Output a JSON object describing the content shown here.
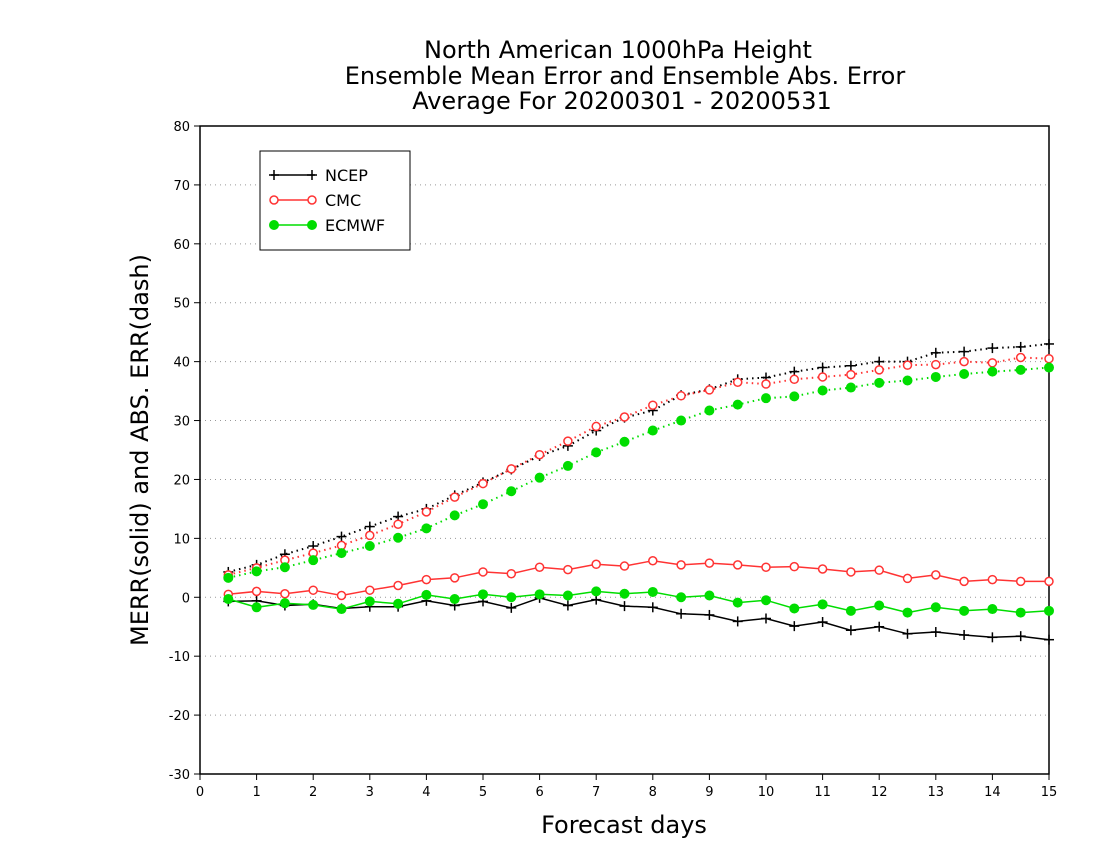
{
  "chart_data": {
    "type": "line",
    "title_lines": [
      "North American 1000hPa Height",
      "Ensemble Mean Error and Ensemble Abs. Error",
      "Average For 20200301 - 20200531"
    ],
    "xlabel": "Forecast days",
    "ylabel": "MERR(solid) and ABS. ERR(dash)",
    "xlim": [
      0,
      15
    ],
    "ylim": [
      -30,
      80
    ],
    "x_ticks": [
      "0",
      "1",
      "2",
      "3",
      "4",
      "5",
      "6",
      "7",
      "8",
      "9",
      "10",
      "11",
      "12",
      "13",
      "14",
      "15"
    ],
    "y_ticks": [
      "-30",
      "-20",
      "-10",
      "0",
      "10",
      "20",
      "30",
      "40",
      "50",
      "60",
      "70",
      "80"
    ],
    "grid": "horizontal dotted",
    "legend_position": "top-left",
    "x": [
      0.5,
      1,
      1.5,
      2,
      2.5,
      3,
      3.5,
      4,
      4.5,
      5,
      5.5,
      6,
      6.5,
      7,
      7.5,
      8,
      8.5,
      9,
      9.5,
      10,
      10.5,
      11,
      11.5,
      12,
      12.5,
      13,
      13.5,
      14,
      14.5,
      15
    ],
    "series": [
      {
        "name": "NCEP",
        "color": "#000000",
        "marker": "plus",
        "merr": [
          -0.7,
          -0.6,
          -1.4,
          -1.2,
          -1.9,
          -1.6,
          -1.6,
          -0.6,
          -1.4,
          -0.7,
          -1.8,
          -0.1,
          -1.4,
          -0.4,
          -1.5,
          -1.7,
          -2.8,
          -3.0,
          -4.1,
          -3.6,
          -4.9,
          -4.2,
          -5.6,
          -5.0,
          -6.2,
          -5.9,
          -6.4,
          -6.8,
          -6.6,
          -7.2
        ],
        "abs_err": [
          4.3,
          5.5,
          7.3,
          8.7,
          10.3,
          12.0,
          13.7,
          15.0,
          17.3,
          19.5,
          21.7,
          24.0,
          25.7,
          28.3,
          30.5,
          31.7,
          34.3,
          35.3,
          37.0,
          37.3,
          38.3,
          39.0,
          39.3,
          40.0,
          40.0,
          41.5,
          41.7,
          42.3,
          42.5,
          43.0
        ]
      },
      {
        "name": "CMC",
        "color": "#ff3333",
        "marker": "open-circle",
        "merr": [
          0.5,
          1.0,
          0.6,
          1.2,
          0.3,
          1.2,
          2.0,
          3.0,
          3.3,
          4.3,
          4.0,
          5.1,
          4.7,
          5.6,
          5.3,
          6.2,
          5.5,
          5.8,
          5.5,
          5.1,
          5.2,
          4.8,
          4.3,
          4.6,
          3.2,
          3.8,
          2.7,
          3.0,
          2.7,
          2.7
        ],
        "abs_err": [
          3.8,
          5.0,
          6.3,
          7.5,
          8.8,
          10.5,
          12.4,
          14.5,
          17.0,
          19.3,
          21.8,
          24.2,
          26.5,
          29.0,
          30.6,
          32.6,
          34.2,
          35.2,
          36.5,
          36.2,
          37.0,
          37.4,
          37.8,
          38.6,
          39.4,
          39.5,
          40.0,
          39.8,
          40.7,
          40.5
        ]
      },
      {
        "name": "ECMWF",
        "color": "#00dd00",
        "marker": "filled-circle",
        "merr": [
          -0.3,
          -1.7,
          -1.0,
          -1.3,
          -2.0,
          -0.7,
          -1.1,
          0.4,
          -0.3,
          0.5,
          0.0,
          0.5,
          0.3,
          1.0,
          0.6,
          0.9,
          0.0,
          0.3,
          -0.9,
          -0.5,
          -1.9,
          -1.2,
          -2.3,
          -1.4,
          -2.6,
          -1.7,
          -2.3,
          -2.0,
          -2.6,
          -2.3
        ],
        "abs_err": [
          3.3,
          4.4,
          5.1,
          6.3,
          7.5,
          8.7,
          10.1,
          11.7,
          13.9,
          15.8,
          18.0,
          20.3,
          22.3,
          24.6,
          26.4,
          28.3,
          30.0,
          31.7,
          32.7,
          33.8,
          34.1,
          35.1,
          35.6,
          36.4,
          36.8,
          37.4,
          37.9,
          38.3,
          38.6,
          39.0
        ]
      }
    ]
  }
}
